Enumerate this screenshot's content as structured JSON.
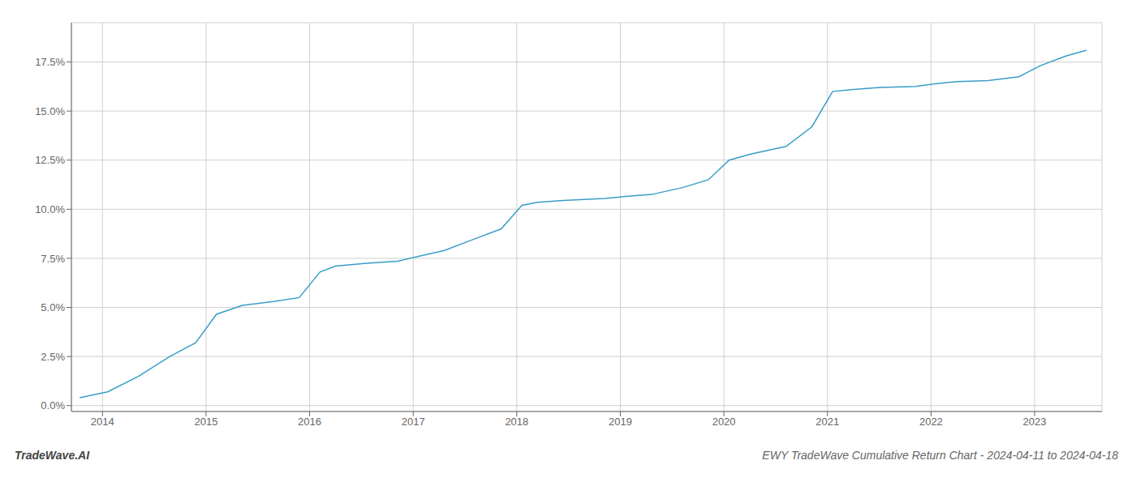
{
  "chart_data": {
    "type": "line",
    "title": "EWY TradeWave Cumulative Return Chart - 2024-04-11 to 2024-04-18",
    "annotations": [
      "TradeWave.AI"
    ],
    "x": [
      2013.78,
      2014.05,
      2014.35,
      2014.65,
      2014.9,
      2015.1,
      2015.35,
      2015.65,
      2015.9,
      2016.1,
      2016.25,
      2016.55,
      2016.85,
      2017.05,
      2017.3,
      2017.6,
      2017.85,
      2018.05,
      2018.2,
      2018.45,
      2018.85,
      2019.05,
      2019.3,
      2019.6,
      2019.85,
      2020.05,
      2020.25,
      2020.6,
      2020.85,
      2021.05,
      2021.25,
      2021.5,
      2021.85,
      2022.05,
      2022.25,
      2022.55,
      2022.85,
      2023.05,
      2023.3,
      2023.5
    ],
    "values": [
      0.4,
      0.7,
      1.5,
      2.5,
      3.2,
      4.65,
      5.1,
      5.3,
      5.5,
      6.8,
      7.1,
      7.25,
      7.35,
      7.6,
      7.9,
      8.5,
      9.0,
      10.2,
      10.35,
      10.45,
      10.55,
      10.65,
      10.75,
      11.1,
      11.5,
      12.5,
      12.8,
      13.2,
      14.2,
      16.0,
      16.1,
      16.2,
      16.25,
      16.4,
      16.5,
      16.55,
      16.75,
      17.3,
      17.8,
      18.1
    ],
    "color": "#3a9dc8",
    "xlim": [
      2013.7,
      2023.65
    ],
    "ylim": [
      -0.3,
      19.5
    ],
    "xticks": [
      2014,
      2015,
      2016,
      2017,
      2018,
      2019,
      2020,
      2021,
      2022,
      2023
    ],
    "yticks": [
      {
        "value": 0.0,
        "label": "0.0%"
      },
      {
        "value": 2.5,
        "label": "2.5%"
      },
      {
        "value": 5.0,
        "label": "5.0%"
      },
      {
        "value": 7.5,
        "label": "7.5%"
      },
      {
        "value": 10.0,
        "label": "10.0%"
      },
      {
        "value": 12.5,
        "label": "12.5%"
      },
      {
        "value": 15.0,
        "label": "15.0%"
      },
      {
        "value": 17.5,
        "label": "17.5%"
      }
    ],
    "grid": true
  }
}
